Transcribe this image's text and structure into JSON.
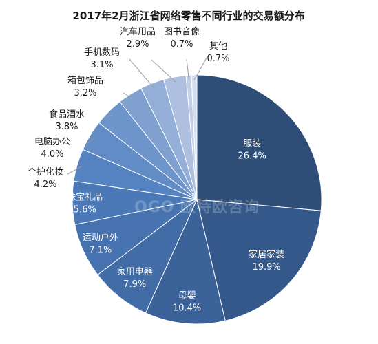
{
  "chart_data": {
    "type": "pie",
    "title": "2017年2月浙江省网络零售不同行业的交易额分布",
    "unit": "%",
    "slices": [
      {
        "label": "服装",
        "value": 26.4,
        "value_text": "26.4%",
        "color": "#2e4e78"
      },
      {
        "label": "家居家装",
        "value": 19.9,
        "value_text": "19.9%",
        "color": "#35588a"
      },
      {
        "label": "母婴",
        "value": 10.4,
        "value_text": "10.4%",
        "color": "#3b639a"
      },
      {
        "label": "家用电器",
        "value": 7.9,
        "value_text": "7.9%",
        "color": "#416ca6"
      },
      {
        "label": "运动户外",
        "value": 7.1,
        "value_text": "7.1%",
        "color": "#4673b0"
      },
      {
        "label": "珠宝礼品",
        "value": 5.6,
        "value_text": "5.6%",
        "color": "#4b79b8"
      },
      {
        "label": "个护化妆",
        "value": 4.2,
        "value_text": "4.2%",
        "color": "#5582c0"
      },
      {
        "label": "电脑办公",
        "value": 4.0,
        "value_text": "4.0%",
        "color": "#618cc6"
      },
      {
        "label": "食品酒水",
        "value": 3.8,
        "value_text": "3.8%",
        "color": "#6e95cb"
      },
      {
        "label": "箱包饰品",
        "value": 3.2,
        "value_text": "3.2%",
        "color": "#80a1d0"
      },
      {
        "label": "手机数码",
        "value": 3.1,
        "value_text": "3.1%",
        "color": "#95b0d8"
      },
      {
        "label": "汽车用品",
        "value": 2.9,
        "value_text": "2.9%",
        "color": "#aebfdf"
      },
      {
        "label": "图书音像",
        "value": 0.7,
        "value_text": "0.7%",
        "color": "#c3cfe6"
      },
      {
        "label": "其他",
        "value": 0.7,
        "value_text": "0.7%",
        "color": "#d5deee"
      }
    ],
    "watermark": "OGO 欧特欧咨询"
  }
}
